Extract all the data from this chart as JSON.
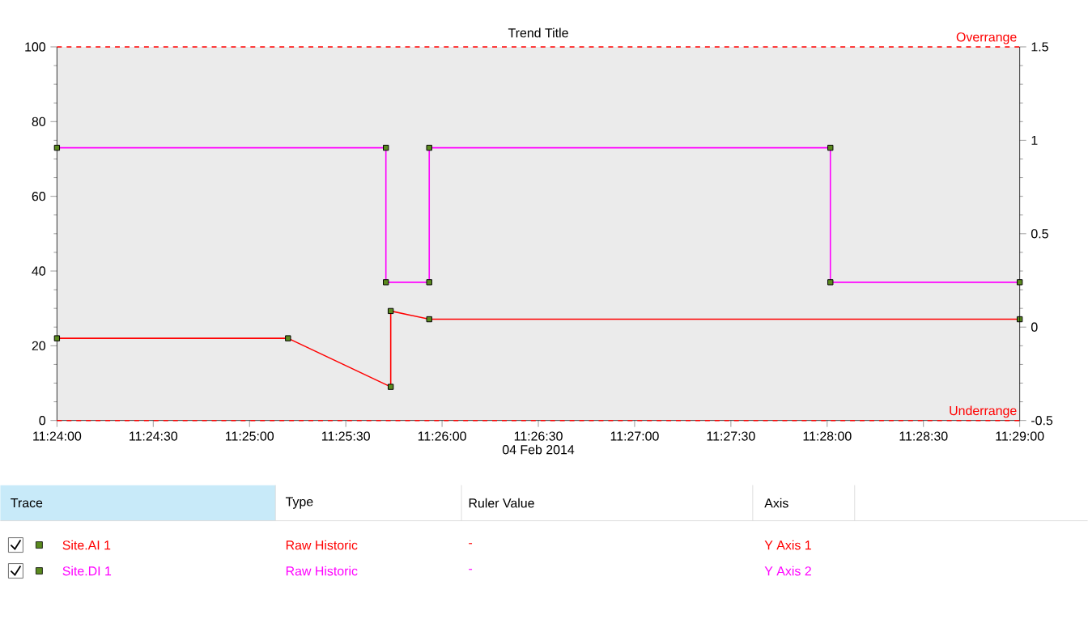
{
  "chart_data": {
    "type": "line",
    "title": "Trend Title",
    "xlabel": "04 Feb 2014",
    "xlim": [
      11.4,
      11.483333
    ],
    "xticks": [
      {
        "value": 11.4,
        "label": "11:24:00"
      },
      {
        "value": 11.408333,
        "label": "11:24:30"
      },
      {
        "value": 11.416667,
        "label": "11:25:00"
      },
      {
        "value": 11.425,
        "label": "11:25:30"
      },
      {
        "value": 11.433333,
        "label": "11:26:00"
      },
      {
        "value": 11.441667,
        "label": "11:26:30"
      },
      {
        "value": 11.45,
        "label": "11:27:00"
      },
      {
        "value": 11.458333,
        "label": "11:27:30"
      },
      {
        "value": 11.466667,
        "label": "11:28:00"
      },
      {
        "value": 11.475,
        "label": "11:28:30"
      },
      {
        "value": 11.483333,
        "label": "11:29:00"
      }
    ],
    "ylim": [
      0,
      100
    ],
    "yticks": [
      0,
      20,
      40,
      60,
      80,
      100
    ],
    "y2lim": [
      -0.5,
      1.5
    ],
    "y2ticks": [
      -0.5,
      0,
      0.5,
      1,
      1.5
    ],
    "series": [
      {
        "name": "Site.AI 1",
        "color": "#ff0000",
        "x": [
          11.4,
          11.42,
          11.428889,
          11.428889,
          11.432222,
          11.483333
        ],
        "values": [
          22,
          22,
          9,
          29.3,
          27.1,
          27.1
        ]
      },
      {
        "name": "Site.DI 1",
        "color": "#ff00ff",
        "axis": "y2",
        "x": [
          11.4,
          11.428472,
          11.428472,
          11.432222,
          11.432222,
          11.466944,
          11.466944,
          11.483333
        ],
        "values": [
          0.96,
          0.96,
          0.24,
          0.24,
          0.96,
          0.96,
          0.24,
          0.24
        ]
      }
    ],
    "marker": "square",
    "line_style": "solid",
    "legend": "bottom",
    "ref_lines": [
      {
        "axis": "y",
        "value": 100,
        "label": "Overrange",
        "color": "#ff0000",
        "line_style": "dashed"
      },
      {
        "axis": "y",
        "value": 0,
        "label": "Underrange",
        "color": "#ff0000",
        "line_style": "dashed"
      }
    ],
    "annotations": [
      "Trace",
      "Type",
      "Ruler Value",
      "Axis",
      "Raw Historic",
      "-",
      "Y Axis 1",
      "Raw Historic",
      "-",
      "Y Axis 2"
    ]
  }
}
